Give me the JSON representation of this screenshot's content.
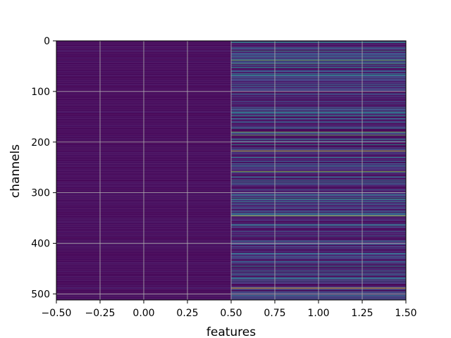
{
  "chart_data": {
    "type": "heatmap",
    "title": "",
    "xlabel": "features",
    "ylabel": "channels",
    "xlim": [
      -0.5,
      1.5
    ],
    "ylim": [
      512,
      0
    ],
    "y_inverted": true,
    "grid": true,
    "colormap": "viridis",
    "n_columns": 2,
    "n_rows": 512,
    "x_ticks": [
      -0.5,
      -0.25,
      0.0,
      0.25,
      0.5,
      0.75,
      1.0,
      1.25,
      1.5
    ],
    "x_tick_labels": [
      "−0.50",
      "−0.25",
      "0.00",
      "0.25",
      "0.50",
      "0.75",
      "1.00",
      "1.25",
      "1.50"
    ],
    "y_ticks": [
      0,
      100,
      200,
      300,
      400,
      500
    ],
    "y_tick_labels": [
      "0",
      "100",
      "200",
      "300",
      "400",
      "500"
    ],
    "column_0_value_range": [
      0.0,
      0.12
    ],
    "column_1_value_range": [
      0.0,
      1.0
    ],
    "column_1_bright_rows": [
      {
        "row": 2,
        "value": 0.55
      },
      {
        "row": 20,
        "value": 0.6
      },
      {
        "row": 38,
        "value": 0.75
      },
      {
        "row": 45,
        "value": 0.65
      },
      {
        "row": 52,
        "value": 0.55
      },
      {
        "row": 68,
        "value": 0.5
      },
      {
        "row": 140,
        "value": 0.5
      },
      {
        "row": 148,
        "value": 0.55
      },
      {
        "row": 180,
        "value": 0.8
      },
      {
        "row": 186,
        "value": 0.75
      },
      {
        "row": 205,
        "value": 0.55
      },
      {
        "row": 217,
        "value": 0.95
      },
      {
        "row": 230,
        "value": 0.5
      },
      {
        "row": 258,
        "value": 0.85
      },
      {
        "row": 275,
        "value": 0.45
      },
      {
        "row": 304,
        "value": 0.5
      },
      {
        "row": 312,
        "value": 0.55
      },
      {
        "row": 318,
        "value": 0.45
      },
      {
        "row": 345,
        "value": 0.9
      },
      {
        "row": 365,
        "value": 0.45
      },
      {
        "row": 395,
        "value": 0.4
      },
      {
        "row": 420,
        "value": 0.45
      },
      {
        "row": 445,
        "value": 0.5
      },
      {
        "row": 470,
        "value": 0.45
      },
      {
        "row": 488,
        "value": 1.0
      },
      {
        "row": 500,
        "value": 0.5
      }
    ],
    "column_0_bright_rows": [
      {
        "row": 20,
        "value": 0.1
      },
      {
        "row": 140,
        "value": 0.1
      },
      {
        "row": 488,
        "value": 0.12
      }
    ]
  }
}
